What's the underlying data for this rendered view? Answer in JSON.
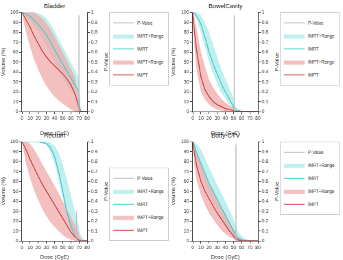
{
  "chart_data": [
    {
      "type": "line",
      "title": "Bladder",
      "x_label": "Dose (GyE)",
      "y_label": "Volume (%)",
      "y2_label": "P-Value",
      "legend": "upper right",
      "grid": false,
      "x": [
        0,
        2,
        5,
        10,
        15,
        20,
        25,
        30,
        35,
        40,
        45,
        50,
        55,
        60,
        65,
        70,
        71,
        72,
        75,
        80
      ],
      "xlim": [
        0,
        80
      ],
      "xticks": [
        0,
        10,
        20,
        30,
        40,
        50,
        60,
        70,
        80
      ],
      "ylim": [
        0,
        100
      ],
      "yticks": [
        0,
        10,
        20,
        30,
        40,
        50,
        60,
        70,
        80,
        90,
        100
      ],
      "y2lim": [
        0,
        1
      ],
      "y2ticks": [
        0,
        0.1,
        0.2,
        0.3,
        0.4,
        0.5,
        0.6,
        0.7,
        0.8,
        0.9,
        1
      ],
      "series": [
        {
          "name": "IMPT",
          "color": "#cc4444",
          "values": [
            100,
            97,
            93,
            85,
            76,
            68,
            61,
            55,
            50,
            46,
            42,
            38,
            33,
            27,
            18,
            3,
            1,
            0,
            0,
            0
          ]
        },
        {
          "name": "IMPT+Range",
          "color": "#f0aaaa",
          "type": "range",
          "low": [
            100,
            90,
            80,
            65,
            52,
            42,
            33,
            26,
            20,
            15,
            11,
            8,
            5,
            2,
            0,
            0,
            0,
            0,
            0,
            0
          ],
          "high": [
            100,
            100,
            100,
            100,
            100,
            97,
            94,
            89,
            83,
            76,
            68,
            60,
            52,
            44,
            35,
            12,
            4,
            1,
            0,
            0
          ]
        },
        {
          "name": "IMRT",
          "color": "#44cccc",
          "values": [
            100,
            99,
            98,
            96,
            92,
            88,
            83,
            77,
            70,
            62,
            55,
            48,
            41,
            34,
            27,
            20,
            5,
            0,
            0,
            0
          ]
        },
        {
          "name": "IMRT+Range",
          "color": "#aaeaea",
          "type": "range",
          "low": [
            100,
            98,
            96,
            92,
            86,
            80,
            73,
            65,
            57,
            49,
            41,
            34,
            27,
            21,
            15,
            9,
            1,
            0,
            0,
            0
          ],
          "high": [
            100,
            100,
            100,
            100,
            100,
            99,
            97,
            94,
            88,
            81,
            73,
            65,
            57,
            49,
            42,
            34,
            10,
            2,
            0,
            0
          ]
        },
        {
          "name": "P-Value",
          "color": "#bbbbbb",
          "axis": "y2",
          "x": [
            70,
            70
          ],
          "values": [
            0,
            0.97
          ]
        }
      ]
    },
    {
      "type": "line",
      "title": "BowelCavity",
      "x_label": "Dose (GyE)",
      "y_label": "Volume (%)",
      "y2_label": "P-Value",
      "legend": "upper right",
      "grid": false,
      "x": [
        0,
        2,
        5,
        10,
        15,
        20,
        25,
        30,
        35,
        40,
        45,
        50,
        51,
        55,
        60,
        65,
        70,
        75,
        80
      ],
      "xlim": [
        0,
        80
      ],
      "xticks": [
        0,
        10,
        20,
        30,
        40,
        50,
        60,
        70,
        80
      ],
      "ylim": [
        0,
        100
      ],
      "yticks": [
        0,
        10,
        20,
        30,
        40,
        50,
        60,
        70,
        80,
        90,
        100
      ],
      "y2lim": [
        0,
        1
      ],
      "y2ticks": [
        0,
        0.1,
        0.2,
        0.3,
        0.4,
        0.5,
        0.6,
        0.7,
        0.8,
        0.9,
        1
      ],
      "series": [
        {
          "name": "IMPT",
          "color": "#cc4444",
          "values": [
            100,
            80,
            60,
            35,
            22,
            15,
            10,
            7,
            5,
            3,
            2,
            1,
            0,
            0,
            0,
            0,
            0,
            0,
            0
          ]
        },
        {
          "name": "IMPT+Range",
          "color": "#f0aaaa",
          "type": "range",
          "low": [
            100,
            65,
            40,
            20,
            12,
            7,
            4,
            2,
            1,
            0,
            0,
            0,
            0,
            0,
            0,
            0,
            0,
            0,
            0
          ],
          "high": [
            100,
            95,
            82,
            60,
            45,
            32,
            24,
            18,
            13,
            9,
            6,
            4,
            2,
            1,
            0,
            0,
            0,
            0,
            0
          ]
        },
        {
          "name": "IMRT",
          "color": "#44cccc",
          "values": [
            100,
            99,
            96,
            88,
            75,
            60,
            48,
            38,
            28,
            20,
            12,
            5,
            2,
            1,
            0,
            0,
            0,
            0,
            0
          ]
        },
        {
          "name": "IMRT+Range",
          "color": "#aaeaea",
          "type": "range",
          "low": [
            100,
            97,
            92,
            80,
            65,
            50,
            38,
            28,
            19,
            13,
            7,
            3,
            1,
            0,
            0,
            0,
            0,
            0,
            0
          ],
          "high": [
            100,
            100,
            100,
            97,
            90,
            80,
            68,
            56,
            43,
            33,
            23,
            14,
            6,
            3,
            1,
            0,
            0,
            0,
            0
          ]
        },
        {
          "name": "P-Value",
          "color": "#bbbbbb",
          "axis": "y2",
          "x": [
            51,
            51
          ],
          "values": [
            0,
            0.97
          ]
        }
      ]
    },
    {
      "type": "line",
      "title": "Rectum",
      "x_label": "Dose (GyE)",
      "y_label": "Volume (%)",
      "y2_label": "P-Value",
      "legend": "lower left",
      "grid": false,
      "x": [
        0,
        2,
        5,
        10,
        15,
        20,
        25,
        30,
        35,
        40,
        45,
        50,
        55,
        60,
        65,
        68,
        70,
        71,
        75,
        80
      ],
      "xlim": [
        0,
        80
      ],
      "xticks": [
        0,
        10,
        20,
        30,
        40,
        50,
        60,
        70,
        80
      ],
      "ylim": [
        0,
        100
      ],
      "yticks": [
        0,
        10,
        20,
        30,
        40,
        50,
        60,
        70,
        80,
        90,
        100
      ],
      "y2lim": [
        0,
        1
      ],
      "y2ticks": [
        0,
        0.1,
        0.2,
        0.3,
        0.4,
        0.5,
        0.6,
        0.7,
        0.8,
        0.9,
        1
      ],
      "series": [
        {
          "name": "IMPT",
          "color": "#cc4444",
          "values": [
            100,
            97,
            92,
            82,
            73,
            65,
            57,
            50,
            43,
            36,
            29,
            22,
            15,
            9,
            4,
            2,
            1,
            0,
            0,
            0
          ]
        },
        {
          "name": "IMPT+Range",
          "color": "#f0aaaa",
          "type": "range",
          "low": [
            100,
            90,
            78,
            63,
            51,
            41,
            32,
            25,
            19,
            14,
            10,
            6,
            3,
            1,
            0,
            0,
            0,
            0,
            0,
            0
          ],
          "high": [
            100,
            100,
            100,
            98,
            92,
            85,
            77,
            70,
            63,
            56,
            48,
            40,
            32,
            24,
            17,
            12,
            8,
            4,
            1,
            0
          ]
        },
        {
          "name": "IMRT",
          "color": "#44cccc",
          "values": [
            100,
            100,
            100,
            100,
            100,
            100,
            99,
            98,
            94,
            85,
            70,
            50,
            30,
            15,
            5,
            2,
            1,
            0,
            0,
            0
          ]
        },
        {
          "name": "IMRT+Range",
          "color": "#aaeaea",
          "type": "range",
          "low": [
            100,
            100,
            100,
            100,
            100,
            100,
            99,
            97,
            90,
            78,
            62,
            43,
            25,
            12,
            4,
            1,
            0,
            0,
            0,
            0
          ],
          "high": [
            100,
            100,
            100,
            100,
            100,
            100,
            100,
            100,
            99,
            96,
            89,
            77,
            62,
            46,
            30,
            20,
            14,
            8,
            2,
            0
          ]
        },
        {
          "name": "P-Value",
          "color": "#bbbbbb",
          "axis": "y2",
          "x": [
            67,
            67
          ],
          "values": [
            0,
            0.3
          ]
        }
      ]
    },
    {
      "type": "line",
      "title": "Body-CTV",
      "x_label": "Dose (GyE)",
      "y_label": "Volume (%)",
      "y2_label": "P-Value",
      "legend": "upper right",
      "grid": false,
      "x": [
        0,
        2,
        5,
        10,
        15,
        20,
        25,
        30,
        35,
        40,
        45,
        50,
        53,
        55,
        60,
        65,
        70,
        72,
        75,
        80
      ],
      "xlim": [
        0,
        80
      ],
      "xticks": [
        0,
        10,
        20,
        30,
        40,
        50,
        60,
        70,
        80
      ],
      "ylim": [
        0,
        100
      ],
      "yticks": [
        0,
        10,
        20,
        30,
        40,
        50,
        60,
        70,
        80,
        90,
        100
      ],
      "y2lim": [
        0,
        1
      ],
      "y2ticks": [
        0,
        0.1,
        0.2,
        0.3,
        0.4,
        0.5,
        0.6,
        0.7,
        0.8,
        0.9,
        1
      ],
      "series": [
        {
          "name": "IMPT",
          "color": "#cc4444",
          "values": [
            100,
            88,
            75,
            60,
            50,
            42,
            35,
            28,
            22,
            16,
            10,
            5,
            2,
            1,
            0,
            0,
            0,
            0,
            0,
            0
          ]
        },
        {
          "name": "IMPT+Range",
          "color": "#f0aaaa",
          "type": "range",
          "low": [
            100,
            75,
            60,
            46,
            36,
            28,
            22,
            16,
            11,
            7,
            4,
            2,
            0,
            0,
            0,
            0,
            0,
            0,
            0,
            0
          ],
          "high": [
            100,
            97,
            90,
            78,
            67,
            57,
            49,
            41,
            34,
            27,
            20,
            13,
            8,
            5,
            2,
            1,
            0,
            0,
            0,
            0
          ]
        },
        {
          "name": "IMRT",
          "color": "#44cccc",
          "values": [
            100,
            95,
            88,
            78,
            68,
            58,
            50,
            42,
            34,
            26,
            18,
            10,
            5,
            3,
            1,
            0,
            0,
            0,
            0,
            0
          ]
        },
        {
          "name": "IMRT+Range",
          "color": "#aaeaea",
          "type": "range",
          "low": [
            100,
            90,
            80,
            68,
            57,
            47,
            38,
            30,
            23,
            16,
            10,
            5,
            2,
            1,
            0,
            0,
            0,
            0,
            0,
            0
          ],
          "high": [
            100,
            100,
            98,
            92,
            83,
            74,
            65,
            57,
            48,
            40,
            31,
            22,
            14,
            10,
            5,
            2,
            1,
            0,
            0,
            0
          ]
        },
        {
          "name": "P-Value",
          "color": "#bbbbbb",
          "axis": "y2",
          "x": [
            53,
            53
          ],
          "values": [
            0,
            0.97
          ]
        }
      ]
    }
  ]
}
